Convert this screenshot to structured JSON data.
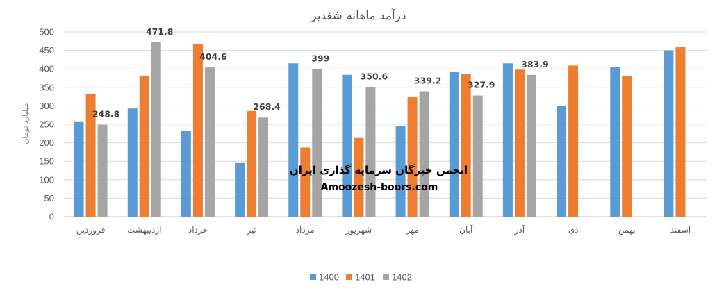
{
  "chart_data": {
    "type": "bar",
    "title": "درآمد ماهانه شغدیر",
    "ylabel": "میلیارد تومان",
    "xlabel": "",
    "ylim": [
      0,
      500
    ],
    "yticks": [
      0,
      50,
      100,
      150,
      200,
      250,
      300,
      350,
      400,
      450,
      500
    ],
    "grid": true,
    "legend_position": "bottom",
    "categories": [
      "فروردین",
      "اردیبهشت",
      "خرداد",
      "تیر",
      "مرداد",
      "شهریور",
      "مهر",
      "آبان",
      "آذر",
      "دی",
      "بهمن",
      "اسفند"
    ],
    "series": [
      {
        "name": "1400",
        "color": "#5b9bd5",
        "values": [
          258,
          293,
          233,
          145,
          415,
          384,
          245,
          393,
          415,
          300,
          405,
          450
        ]
      },
      {
        "name": "1401",
        "color": "#ed7d31",
        "values": [
          331,
          380,
          468,
          286,
          187,
          213,
          325,
          387,
          398,
          409,
          381,
          460
        ]
      },
      {
        "name": "1402",
        "color": "#a5a5a5",
        "values": [
          248.8,
          471.8,
          404.6,
          268.4,
          399,
          350.6,
          339.2,
          327.9,
          383.9,
          null,
          null,
          null
        ],
        "data_labels": [
          "248.8",
          "471.8",
          "404.6",
          "268.4",
          "399",
          "350.6",
          "339.2",
          "327.9",
          "383.9"
        ]
      }
    ]
  },
  "watermark": {
    "line1": "انجمن خبرگان سرمایه گذاری ایران",
    "line2": "Amoozesh-boors.com"
  }
}
